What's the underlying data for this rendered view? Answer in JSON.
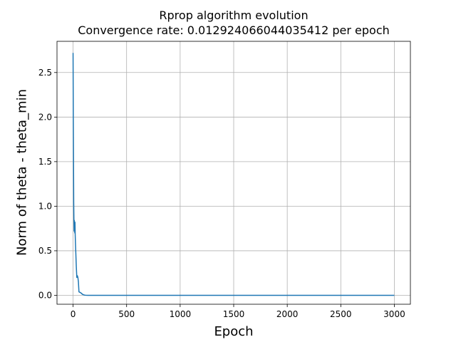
{
  "chart_data": {
    "type": "line",
    "title": "Rprop algorithm evolution",
    "subtitle": "Convergence rate: 0.012924066044035412 per epoch",
    "xlabel": "Epoch",
    "ylabel": "Norm of  theta - theta_min",
    "xlim": [
      -150,
      3150
    ],
    "ylim": [
      -0.1,
      2.85
    ],
    "xticks": [
      0,
      500,
      1000,
      1500,
      2000,
      2500,
      3000
    ],
    "xtick_labels": [
      "0",
      "500",
      "1000",
      "1500",
      "2000",
      "2500",
      "3000"
    ],
    "yticks": [
      0.0,
      0.5,
      1.0,
      1.5,
      2.0,
      2.5
    ],
    "ytick_labels": [
      "0.0",
      "0.5",
      "1.0",
      "1.5",
      "2.0",
      "2.5"
    ],
    "grid": true,
    "series": [
      {
        "color": "#1f77b4",
        "x": [
          0,
          2,
          4,
          6,
          8,
          10,
          12,
          14,
          16,
          18,
          20,
          22,
          25,
          30,
          35,
          40,
          45,
          50,
          55,
          60,
          70,
          80,
          90,
          100,
          110,
          120,
          140,
          160,
          200,
          300,
          500,
          1000,
          1500,
          2000,
          2500,
          3000
        ],
        "y": [
          2.72,
          2.0,
          1.55,
          1.05,
          0.85,
          0.72,
          0.84,
          0.78,
          0.7,
          0.82,
          0.68,
          0.6,
          0.5,
          0.33,
          0.2,
          0.22,
          0.2,
          0.15,
          0.04,
          0.035,
          0.03,
          0.02,
          0.01,
          0.005,
          0.002,
          0.001,
          0.0,
          0.0,
          0.0,
          0.0,
          0.0,
          0.0,
          0.0,
          0.0,
          0.0,
          0.0
        ]
      }
    ]
  }
}
